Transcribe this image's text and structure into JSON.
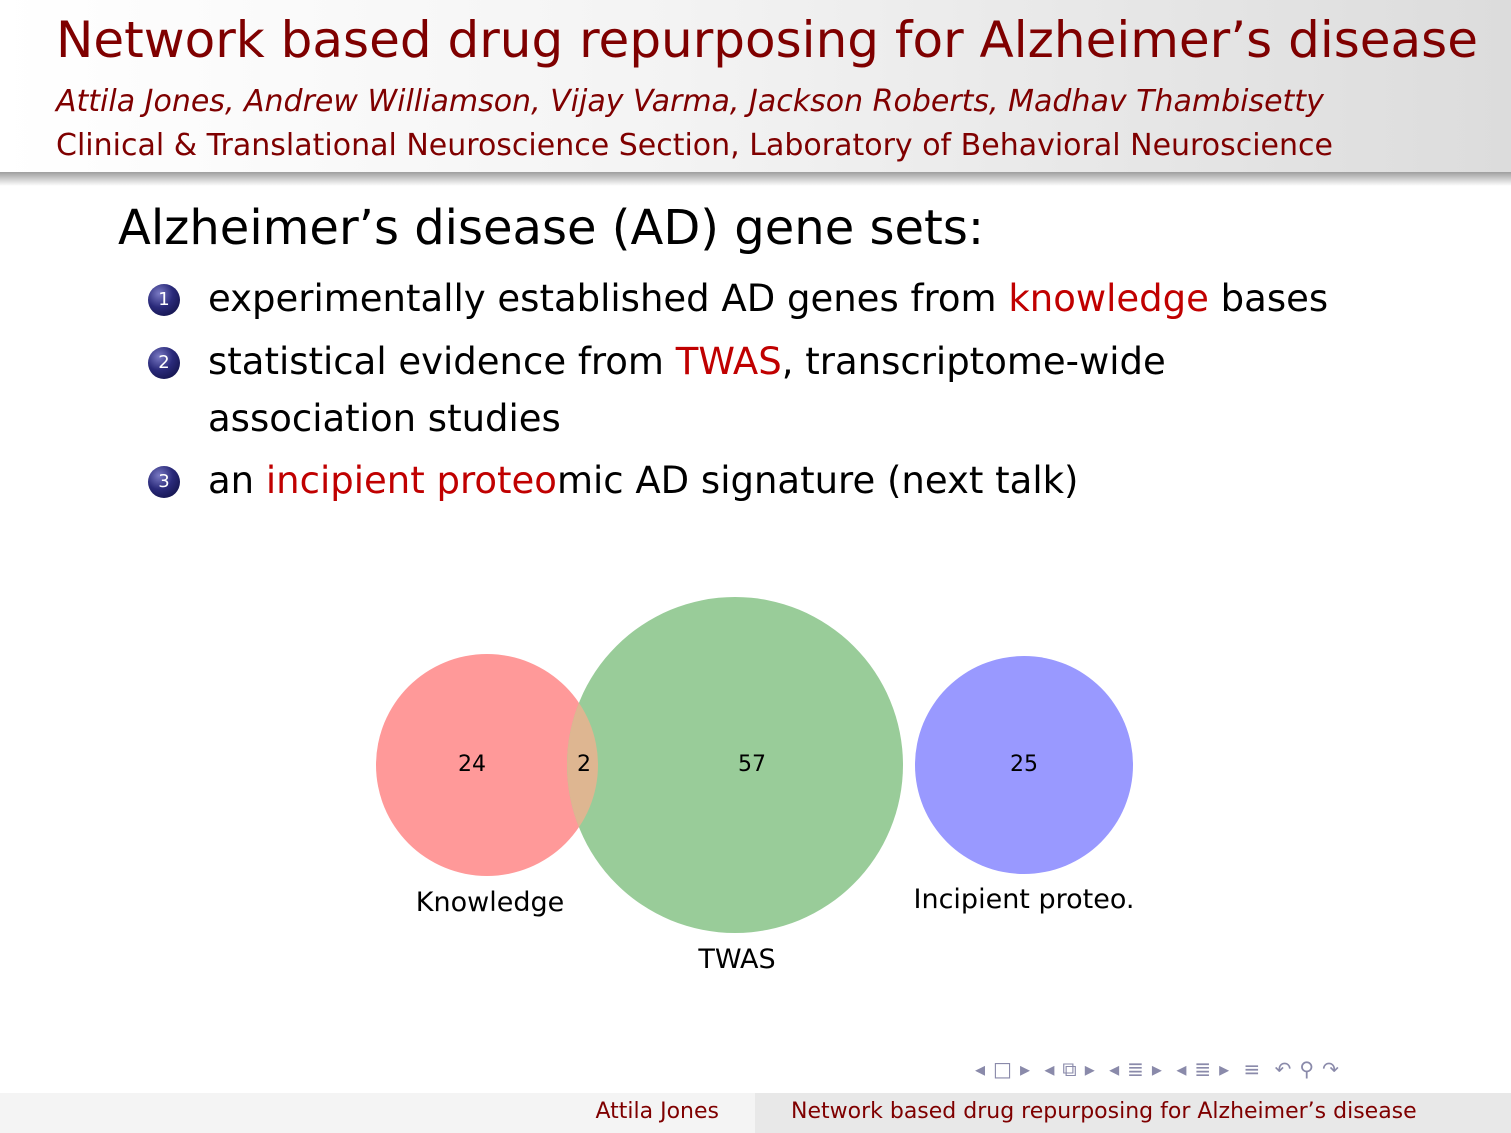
{
  "header": {
    "title": "Network based drug repurposing for Alzheimer’s disease",
    "authors": "Attila Jones, Andrew Williamson, Vijay Varma, Jackson Roberts, Madhav Thambisetty",
    "affiliation": "Clinical & Translational Neuroscience Section, Laboratory of Behavioral Neuroscience"
  },
  "body": {
    "heading": "Alzheimer’s disease (AD) gene sets:",
    "items": [
      {
        "number": "1",
        "pre": "experimentally established AD genes from ",
        "highlight": "knowledge",
        "post": " bases"
      },
      {
        "number": "2",
        "pre": "statistical evidence from ",
        "highlight": "TWAS",
        "post": ", transcriptome-wide",
        "line2": "association studies"
      },
      {
        "number": "3",
        "pre": "an ",
        "highlight": "incipient proteo",
        "post": "mic AD signature (next talk)"
      }
    ]
  },
  "venn": {
    "sets": [
      {
        "name": "Knowledge",
        "only": "24",
        "color": "#ff9999"
      },
      {
        "name": "TWAS",
        "only": "57",
        "color": "#99cc99"
      },
      {
        "name": "Incipient proteo.",
        "only": "25",
        "color": "#9999ff"
      }
    ],
    "overlap_knowledge_twas": "2",
    "overlap_color": "#deb691"
  },
  "nav": {
    "icons": [
      "nav-left-arrow",
      "frame-icon",
      "nav-right-arrow",
      "nav-left-arrow",
      "subsection-icon",
      "nav-right-arrow",
      "nav-left-arrow",
      "section-icon",
      "nav-right-arrow",
      "nav-left-arrow",
      "section-icon",
      "nav-right-arrow",
      "align-icon",
      "undo-icon",
      "search-icon",
      "redo-icon"
    ]
  },
  "footer": {
    "author": "Attila Jones",
    "title": "Network based drug repurposing for Alzheimer’s disease"
  }
}
